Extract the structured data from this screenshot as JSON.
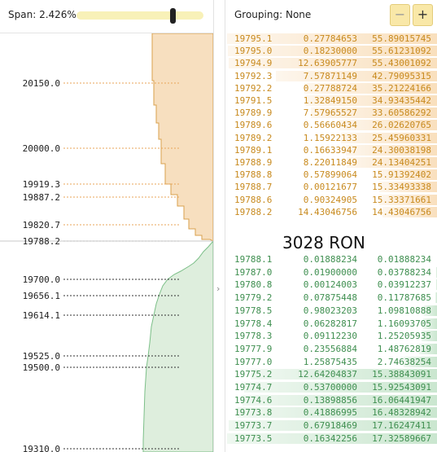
{
  "header": {
    "span_label": "Span:",
    "span_value": "2.426%",
    "span_slider_level": 0.76,
    "grouping_label": "Grouping:",
    "grouping_value": "None",
    "zoom_out_label": "−",
    "zoom_in_label": "+"
  },
  "spread": {
    "label": "3028 RON"
  },
  "depth_chart": {
    "mid_price": "19788.2",
    "price_ticks": [
      "20150.0",
      "20000.0",
      "19919.3",
      "19887.2",
      "19820.7",
      "19788.2",
      "19700.0",
      "19656.1",
      "19614.1",
      "19525.0",
      "19500.0",
      "19310.0"
    ]
  },
  "asks": [
    {
      "price": "19795.1",
      "size": "0.27784653",
      "total": "55.89015745"
    },
    {
      "price": "19795.0",
      "size": "0.18230000",
      "total": "55.61231092"
    },
    {
      "price": "19794.9",
      "size": "12.63905777",
      "total": "55.43001092"
    },
    {
      "price": "19792.3",
      "size": "7.57871149",
      "total": "42.79095315"
    },
    {
      "price": "19792.2",
      "size": "0.27788724",
      "total": "35.21224166"
    },
    {
      "price": "19791.5",
      "size": "1.32849150",
      "total": "34.93435442"
    },
    {
      "price": "19789.9",
      "size": "7.57965527",
      "total": "33.60586292"
    },
    {
      "price": "19789.6",
      "size": "0.56660434",
      "total": "26.02620765"
    },
    {
      "price": "19789.2",
      "size": "1.15922133",
      "total": "25.45960331"
    },
    {
      "price": "19789.1",
      "size": "0.16633947",
      "total": "24.30038198"
    },
    {
      "price": "19788.9",
      "size": "8.22011849",
      "total": "24.13404251"
    },
    {
      "price": "19788.8",
      "size": "0.57899064",
      "total": "15.91392402"
    },
    {
      "price": "19788.7",
      "size": "0.00121677",
      "total": "15.33493338"
    },
    {
      "price": "19788.6",
      "size": "0.90324905",
      "total": "15.33371661"
    },
    {
      "price": "19788.2",
      "size": "14.43046756",
      "total": "14.43046756"
    }
  ],
  "bids": [
    {
      "price": "19788.1",
      "size": "0.01888234",
      "total": "0.01888234"
    },
    {
      "price": "19787.0",
      "size": "0.01900000",
      "total": "0.03788234"
    },
    {
      "price": "19780.8",
      "size": "0.00124003",
      "total": "0.03912237"
    },
    {
      "price": "19779.2",
      "size": "0.07875448",
      "total": "0.11787685"
    },
    {
      "price": "19778.5",
      "size": "0.98023203",
      "total": "1.09810888"
    },
    {
      "price": "19778.4",
      "size": "0.06282817",
      "total": "1.16093705"
    },
    {
      "price": "19778.3",
      "size": "0.09112230",
      "total": "1.25205935"
    },
    {
      "price": "19777.9",
      "size": "0.23556884",
      "total": "1.48762819"
    },
    {
      "price": "19777.0",
      "size": "1.25875435",
      "total": "2.74638254"
    },
    {
      "price": "19775.2",
      "size": "12.64204837",
      "total": "15.38843091"
    },
    {
      "price": "19774.7",
      "size": "0.53700000",
      "total": "15.92543091"
    },
    {
      "price": "19774.6",
      "size": "0.13898856",
      "total": "16.06441947"
    },
    {
      "price": "19773.8",
      "size": "0.41886995",
      "total": "16.48328942"
    },
    {
      "price": "19773.7",
      "size": "0.67918469",
      "total": "17.16247411"
    },
    {
      "price": "19773.5",
      "size": "0.16342256",
      "total": "17.32589667"
    }
  ],
  "colors": {
    "ask": "#c88a1e",
    "bid": "#3f8f50",
    "ask_fill": "#f7dfbf",
    "bid_fill": "#deeedd",
    "slider": "#f8f1b8"
  }
}
